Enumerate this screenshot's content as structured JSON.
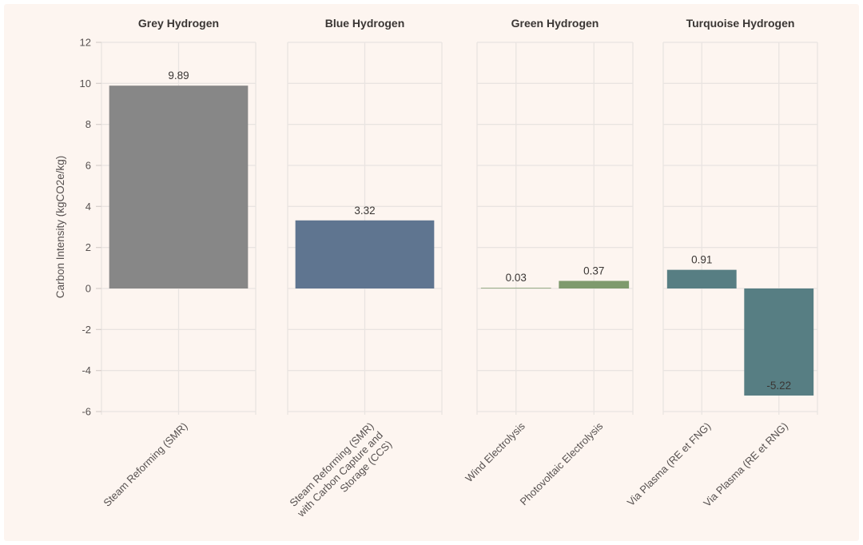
{
  "page": {
    "background": "#ffffff",
    "canvas_background": "#fdf5f0"
  },
  "chart_data": {
    "type": "bar",
    "title": "",
    "ylabel": "Carbon Intensity (kgCO2e/kg)",
    "xlabel": "",
    "ylim": [
      -6,
      12
    ],
    "yticks": [
      12,
      10,
      8,
      6,
      4,
      2,
      0,
      -2,
      -4,
      -6
    ],
    "grid": true,
    "legend": false,
    "panels": [
      {
        "title": "Grey Hydrogen",
        "bar_color": "#878787",
        "categories": [
          "Steam Reforming (SMR)"
        ],
        "values": [
          9.89
        ],
        "value_labels": [
          "9.89"
        ]
      },
      {
        "title": "Blue Hydrogen",
        "bar_color": "#5f7590",
        "categories": [
          "Steam Reforming (SMR)\nwith Carbon Capture and\nStorage (CCS)"
        ],
        "values": [
          3.32
        ],
        "value_labels": [
          "3.32"
        ]
      },
      {
        "title": "Green Hydrogen",
        "bar_color": "#7e9a6d",
        "categories": [
          "Wind Electrolysis",
          "Photovoltaic Electrolysis"
        ],
        "values": [
          0.03,
          0.37
        ],
        "value_labels": [
          "0.03",
          "0.37"
        ]
      },
      {
        "title": "Turquoise Hydrogen",
        "bar_color": "#577e83",
        "categories": [
          "Via Plasma (RE et FNG)",
          "Via Plasma (RE et RNG)"
        ],
        "values": [
          0.91,
          -5.22
        ],
        "value_labels": [
          "0.91",
          "-5.22"
        ]
      }
    ],
    "colors": {
      "grid": "#e9e4e1",
      "tick": "#d9d2ce",
      "panel_title_text": "#3a3634",
      "axis_text": "#575150",
      "value_text": "#3a3634"
    }
  }
}
